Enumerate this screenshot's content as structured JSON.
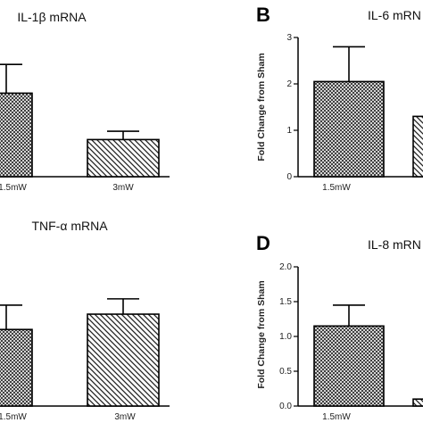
{
  "chart_data": [
    {
      "panel": "",
      "type": "bar",
      "title": "IL-1β mRNA",
      "ylabel": "",
      "categories": [
        "1.5mW",
        "3mW"
      ],
      "values": [
        1.8,
        0.8
      ],
      "errors": [
        0.62,
        0.18
      ],
      "ylim": [
        0,
        3
      ],
      "yticks": []
    },
    {
      "panel": "B",
      "type": "bar",
      "title": "IL-6 mRN",
      "ylabel": "Fold Change from Sham",
      "categories": [
        "1.5mW"
      ],
      "values": [
        2.05
      ],
      "errors": [
        0.75
      ],
      "ylim": [
        0,
        3
      ],
      "yticks": [
        "0",
        "1",
        "2",
        "3"
      ],
      "partial_bar": {
        "value": 1.3
      }
    },
    {
      "panel": "",
      "type": "bar",
      "title": "TNF-α mRNA",
      "ylabel": "",
      "categories": [
        "1.5mW",
        "3mW"
      ],
      "values": [
        1.1,
        1.32
      ],
      "errors": [
        0.35,
        0.22
      ],
      "ylim": [
        0,
        2.0
      ],
      "yticks": []
    },
    {
      "panel": "D",
      "type": "bar",
      "title": "IL-8 mRN",
      "ylabel": "Fold Change from Sham",
      "categories": [
        "1.5mW"
      ],
      "values": [
        1.15
      ],
      "errors": [
        0.3
      ],
      "ylim": [
        0,
        2.0
      ],
      "yticks": [
        "0.0",
        "0.5",
        "1.0",
        "1.5",
        "2.0"
      ],
      "partial_bar": {
        "value": 0.1
      }
    }
  ]
}
